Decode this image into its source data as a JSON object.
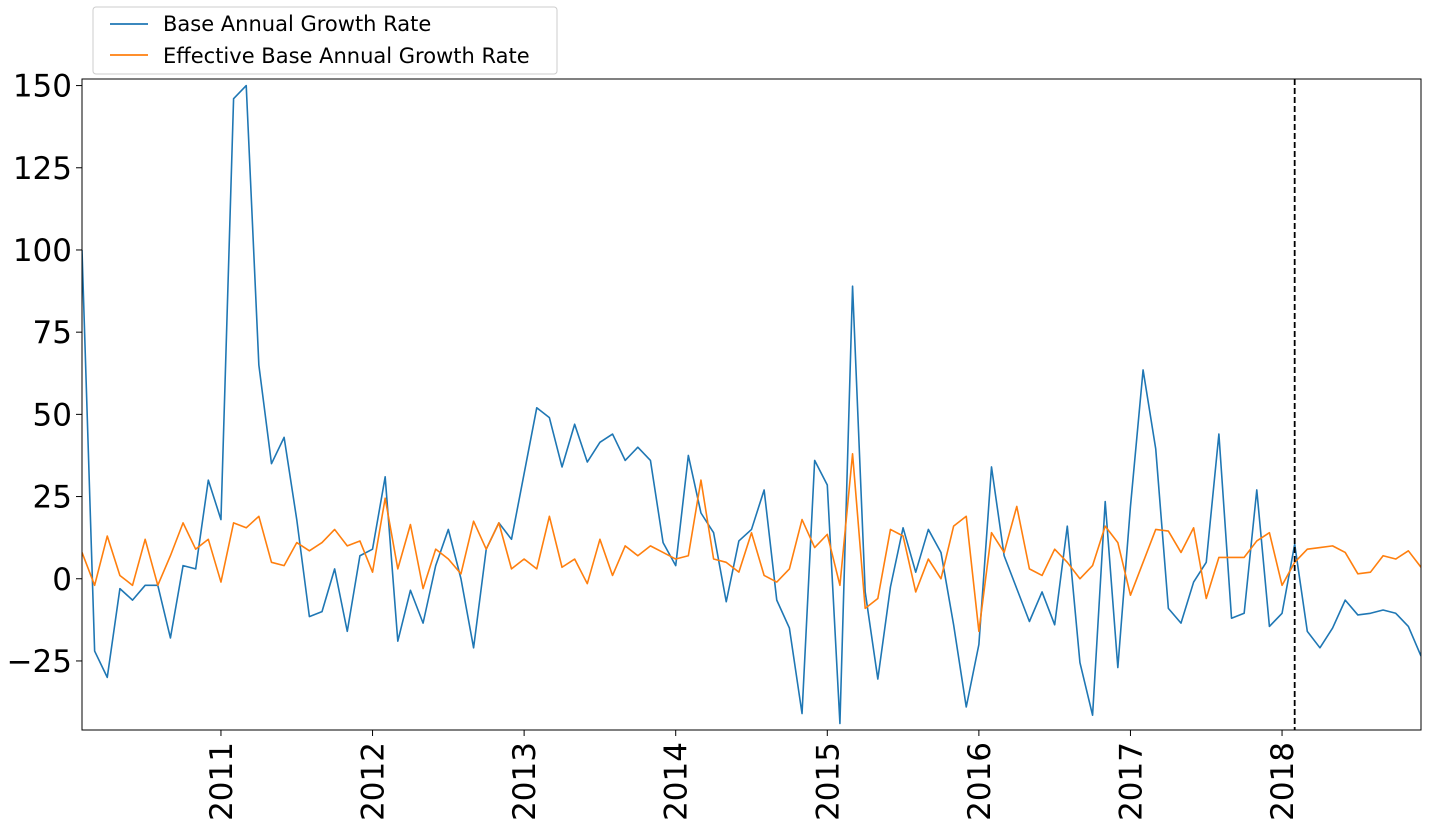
{
  "chart_data": {
    "type": "line",
    "title": "",
    "xlabel": "",
    "ylabel": "",
    "ylim": [
      -46,
      152
    ],
    "xlim": [
      "2010-02",
      "2018-12"
    ],
    "x_tick_labels": [
      "2011",
      "2012",
      "2013",
      "2014",
      "2015",
      "2016",
      "2017",
      "2018"
    ],
    "y_tick_labels": [
      "150",
      "125",
      "100",
      "75",
      "50",
      "25",
      "0",
      "−25"
    ],
    "y_ticks": [
      150,
      125,
      100,
      75,
      50,
      25,
      0,
      -25
    ],
    "grid": false,
    "legend_position": "top-left, above axes",
    "vline": {
      "x": "2018-02",
      "style": "dashed",
      "color": "#000000"
    },
    "x": [
      "2010-02",
      "2010-03",
      "2010-04",
      "2010-05",
      "2010-06",
      "2010-07",
      "2010-08",
      "2010-09",
      "2010-10",
      "2010-11",
      "2010-12",
      "2011-01",
      "2011-02",
      "2011-03",
      "2011-04",
      "2011-05",
      "2011-06",
      "2011-07",
      "2011-08",
      "2011-09",
      "2011-10",
      "2011-11",
      "2011-12",
      "2012-01",
      "2012-02",
      "2012-03",
      "2012-04",
      "2012-05",
      "2012-06",
      "2012-07",
      "2012-08",
      "2012-09",
      "2012-10",
      "2012-11",
      "2012-12",
      "2013-01",
      "2013-02",
      "2013-03",
      "2013-04",
      "2013-05",
      "2013-06",
      "2013-07",
      "2013-08",
      "2013-09",
      "2013-10",
      "2013-11",
      "2013-12",
      "2014-01",
      "2014-02",
      "2014-03",
      "2014-04",
      "2014-05",
      "2014-06",
      "2014-07",
      "2014-08",
      "2014-09",
      "2014-10",
      "2014-11",
      "2014-12",
      "2015-01",
      "2015-02",
      "2015-03",
      "2015-04",
      "2015-05",
      "2015-06",
      "2015-07",
      "2015-08",
      "2015-09",
      "2015-10",
      "2015-11",
      "2015-12",
      "2016-01",
      "2016-02",
      "2016-03",
      "2016-04",
      "2016-05",
      "2016-06",
      "2016-07",
      "2016-08",
      "2016-09",
      "2016-10",
      "2016-11",
      "2016-12",
      "2017-01",
      "2017-02",
      "2017-03",
      "2017-04",
      "2017-05",
      "2017-06",
      "2017-07",
      "2017-08",
      "2017-09",
      "2017-10",
      "2017-11",
      "2017-12",
      "2018-01",
      "2018-02",
      "2018-03",
      "2018-04",
      "2018-05",
      "2018-06",
      "2018-07",
      "2018-08",
      "2018-09",
      "2018-10",
      "2018-11",
      "2018-12"
    ],
    "series": [
      {
        "name": "Base Annual Growth Rate",
        "color": "#1f77b4",
        "values": [
          100,
          -22,
          -30,
          -3,
          -6.5,
          -2,
          -2,
          -18,
          4,
          3,
          30,
          18,
          146,
          150,
          65,
          35,
          43,
          18,
          -11.5,
          -10,
          3,
          -16,
          7,
          9,
          31,
          -19,
          -3.5,
          -13.5,
          4,
          15,
          0,
          -21,
          9,
          17,
          12,
          32,
          52,
          49,
          34,
          47,
          35.5,
          41.5,
          44,
          36,
          40,
          36,
          11,
          4,
          37.5,
          20,
          14,
          -7,
          11.5,
          15,
          27,
          -6.5,
          -15,
          -41,
          36,
          28.5,
          -44,
          89,
          -4,
          -30.5,
          -2.5,
          15.5,
          2,
          15,
          8,
          -14,
          -39,
          -20,
          34,
          7,
          -3,
          -13,
          -4,
          -14,
          16,
          -25.5,
          -41.5,
          23.5,
          -27,
          22,
          63.5,
          39.5,
          -9,
          -13.5,
          -1,
          5,
          44,
          -12,
          -10.5,
          27,
          -14.5,
          -10.5,
          10.5,
          -16,
          -21,
          -15,
          -6.5,
          -11,
          -10.5,
          -9.5,
          -10.5,
          -14.5,
          -23.5
        ]
      },
      {
        "name": "Effective Base Annual Growth Rate",
        "color": "#ff7f0e",
        "values": [
          8,
          -2,
          13,
          1,
          -2,
          12,
          -2,
          7,
          17,
          9,
          12,
          -1,
          17,
          15.5,
          19,
          5,
          4,
          11,
          8.5,
          11,
          15,
          10,
          11.5,
          2,
          24.5,
          3,
          16.5,
          -3,
          9,
          6,
          1.5,
          17.5,
          9,
          17,
          3,
          6,
          3,
          19,
          3.5,
          6,
          -1.5,
          12,
          1,
          10,
          7,
          10,
          8,
          6,
          7,
          30,
          6,
          5,
          2,
          14,
          1,
          -1,
          3,
          18,
          9.5,
          13.5,
          -2,
          38,
          -9,
          -6,
          15,
          13,
          -4,
          6,
          0,
          16,
          19,
          -16,
          14,
          8,
          22,
          3,
          1,
          9,
          5,
          0,
          4,
          16,
          11,
          -5,
          5,
          15,
          14.5,
          8,
          15.5,
          -6,
          6.5,
          6.5,
          6.5,
          11.5,
          14,
          -2,
          5,
          9,
          9.5,
          10,
          8,
          1.5,
          2,
          7,
          6,
          8.5,
          3.5
        ]
      }
    ]
  }
}
